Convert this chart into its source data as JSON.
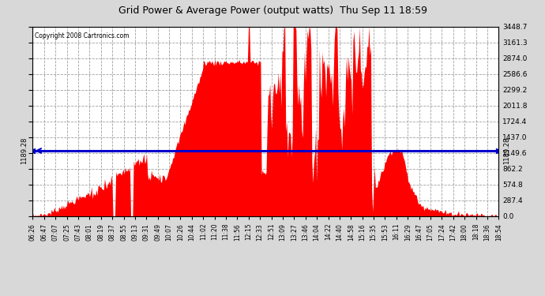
{
  "title": "Grid Power & Average Power (output watts)  Thu Sep 11 18:59",
  "copyright": "Copyright 2008 Cartronics.com",
  "avg_value": 1189.28,
  "ylim": [
    0.0,
    3448.7
  ],
  "yticks": [
    0.0,
    287.4,
    574.8,
    862.2,
    1149.6,
    1437.0,
    1724.4,
    2011.8,
    2299.2,
    2586.6,
    2874.0,
    3161.3,
    3448.7
  ],
  "bg_color": "#d8d8d8",
  "plot_bg_color": "#ffffff",
  "bar_color": "#ff0000",
  "avg_line_color": "#0000cc",
  "grid_color": "#a0a0a0",
  "x_labels": [
    "06:26",
    "06:47",
    "07:07",
    "07:25",
    "07:43",
    "08:01",
    "08:19",
    "08:37",
    "08:55",
    "09:13",
    "09:31",
    "09:49",
    "10:07",
    "10:26",
    "10:44",
    "11:02",
    "11:20",
    "11:38",
    "11:56",
    "12:15",
    "12:33",
    "12:51",
    "13:09",
    "13:27",
    "13:46",
    "14:04",
    "14:22",
    "14:40",
    "14:58",
    "15:16",
    "15:35",
    "15:53",
    "16:11",
    "16:29",
    "16:47",
    "17:05",
    "17:24",
    "17:42",
    "18:00",
    "18:18",
    "18:36",
    "18:54"
  ]
}
